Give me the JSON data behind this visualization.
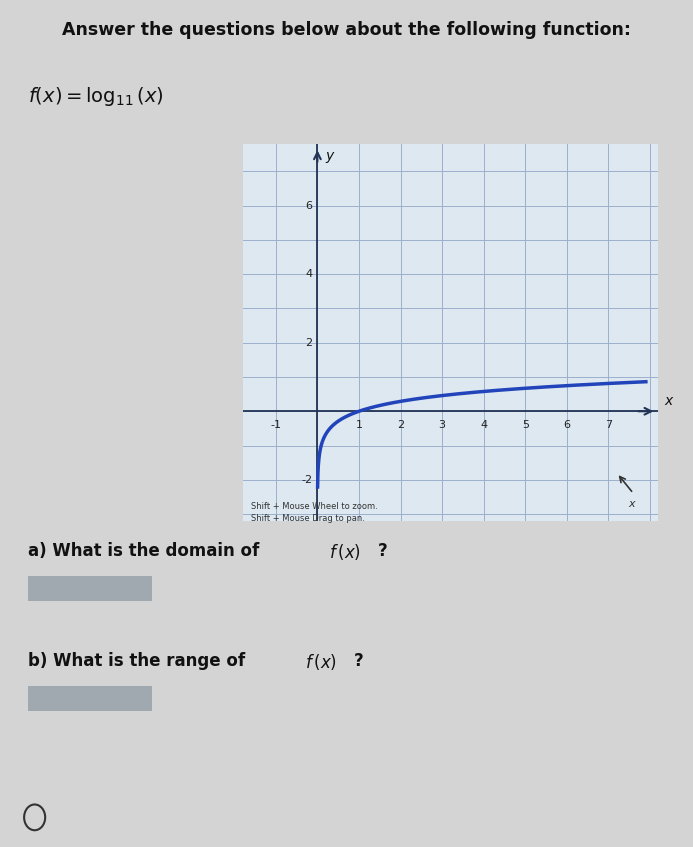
{
  "title_text": "Answer the questions below about the following function:",
  "function_label_plain": "f(χ) = log₁₁(χ)",
  "question_a": "a) What is the domain of ",
  "question_b": "b) What is the range of ",
  "graph_xlim": [
    -1.8,
    8.2
  ],
  "graph_ylim": [
    -3.2,
    7.8
  ],
  "xticks": [
    -1,
    1,
    2,
    3,
    4,
    5,
    6,
    7
  ],
  "yticks": [
    -2,
    2,
    4,
    6
  ],
  "curve_color": "#2244bb",
  "curve_linewidth": 2.5,
  "grid_color": "#9bb0cc",
  "axis_color": "#223355",
  "bg_color": "#dde8f0",
  "outer_bg": "#b8b8b8",
  "hint_text1": "Shift + Mouse Wheel to zoom.",
  "hint_text2": "Shift + Mouse Drag to pan.",
  "x_axis_label": "x",
  "y_axis_label": "y",
  "answer_box_color": "#a0a8b0",
  "panel_bg": "#d4d4d4"
}
